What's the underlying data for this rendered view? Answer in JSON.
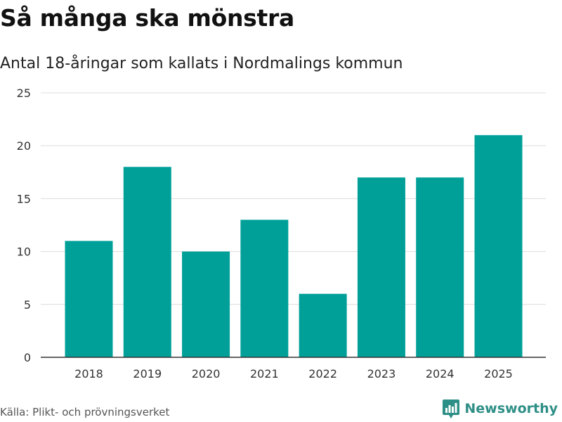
{
  "title": "Så många ska mönstra",
  "subtitle": "Antal 18-åringar som kallats i Nordmalings kommun",
  "source": "Källa: Plikt- och prövningsverket",
  "brand": {
    "name": "Newsworthy",
    "color": "#2e8f86",
    "icon": "newsworthy-logo-icon"
  },
  "colors": {
    "bar": "#00a099",
    "grid": "#dcdcdc",
    "axis": "#333333"
  },
  "chart_data": {
    "type": "bar",
    "categories": [
      "2018",
      "2019",
      "2020",
      "2021",
      "2022",
      "2023",
      "2024",
      "2025"
    ],
    "values": [
      11,
      18,
      10,
      13,
      6,
      17,
      17,
      21
    ],
    "ylim": [
      0,
      25
    ],
    "yticks": [
      "0",
      "5",
      "10",
      "15",
      "20",
      "25"
    ],
    "xlabel": "",
    "ylabel": "",
    "grid": true
  }
}
